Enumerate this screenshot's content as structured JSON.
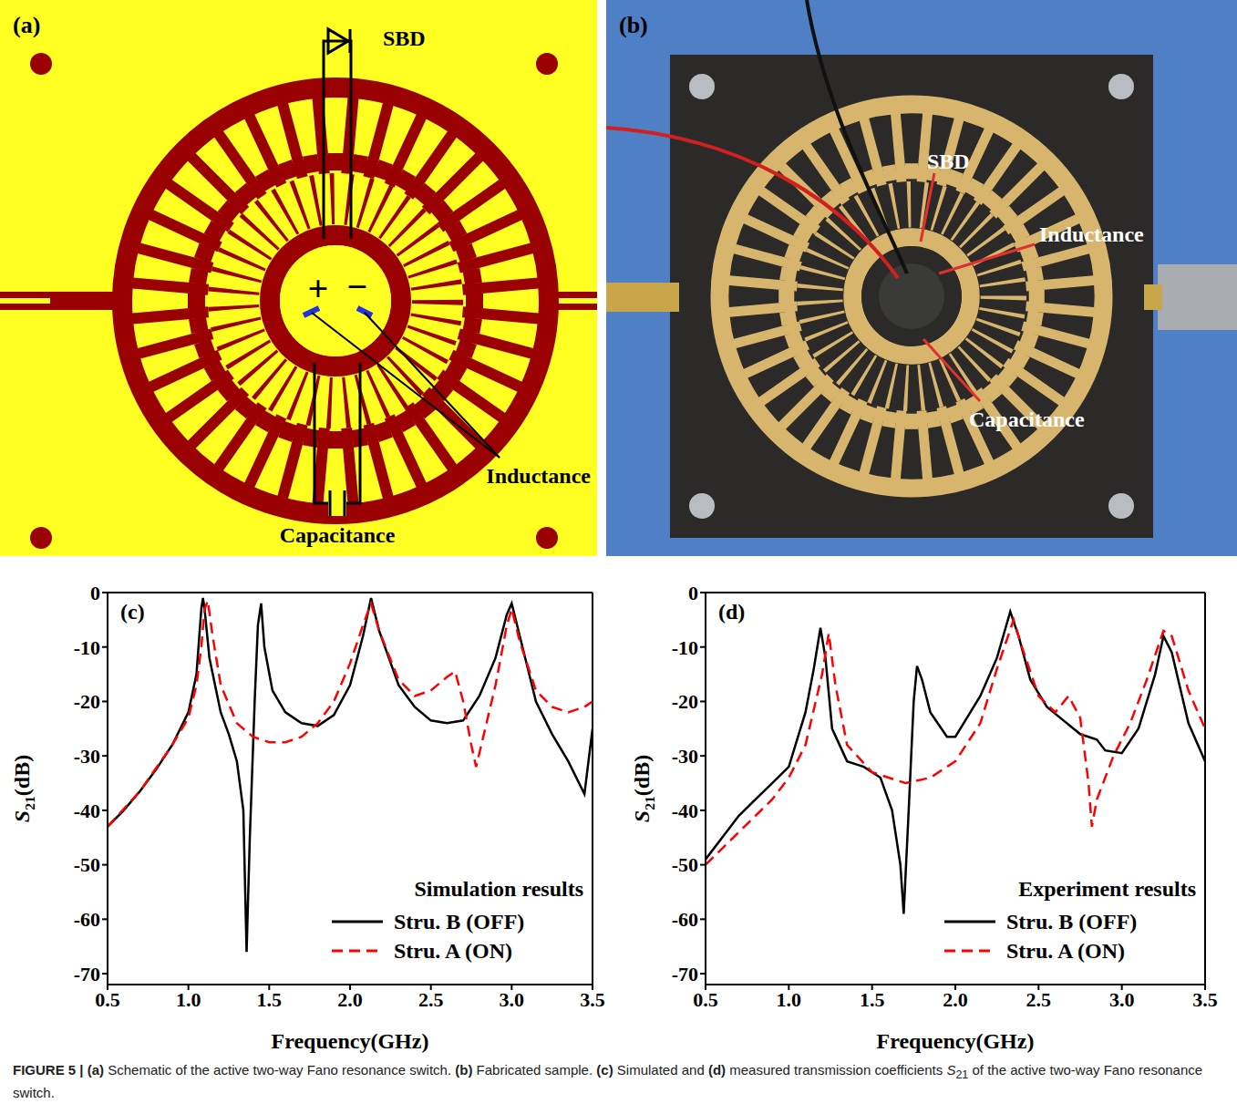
{
  "panel_a": {
    "label": "(a)",
    "components": [
      "SBD",
      "Inductance",
      "Capacitance"
    ],
    "polarity": [
      "+",
      "−"
    ]
  },
  "panel_b": {
    "label": "(b)",
    "components": [
      "SBD",
      "Inductance",
      "Capacitance"
    ]
  },
  "chart_data": [
    {
      "type": "line",
      "panel": "(c)",
      "legend_title": "Simulation results",
      "legend": "lower right",
      "x_label": "Frequency(GHz)",
      "y_label": "S21(dB)",
      "xlim": [
        0.5,
        3.5
      ],
      "ylim": [
        -72,
        0
      ],
      "xticks": [
        0.5,
        {
          "value": 1,
          "label": "1.0"
        },
        1.5,
        {
          "value": 2,
          "label": "2.0"
        },
        2.5,
        {
          "value": 3,
          "label": "3.0"
        },
        3.5
      ],
      "yticks": [
        0,
        -10,
        -20,
        -30,
        -40,
        -50,
        -60,
        -70
      ],
      "series": [
        {
          "name": "Stru. B (OFF)",
          "color": "#000000",
          "line_style": "solid",
          "x": [
            0.5,
            0.6,
            0.7,
            0.8,
            0.9,
            1.0,
            1.05,
            1.08,
            1.09,
            1.1,
            1.13,
            1.2,
            1.25,
            1.3,
            1.34,
            1.36,
            1.38,
            1.41,
            1.43,
            1.45,
            1.47,
            1.52,
            1.6,
            1.7,
            1.8,
            1.9,
            2.0,
            2.08,
            2.13,
            2.18,
            2.3,
            2.4,
            2.5,
            2.6,
            2.7,
            2.8,
            2.9,
            2.97,
            3.0,
            3.05,
            3.15,
            3.25,
            3.35,
            3.45,
            3.5
          ],
          "values": [
            -43,
            -40,
            -36.5,
            -32.5,
            -28,
            -22,
            -15,
            -3,
            -1,
            -3,
            -12,
            -22,
            -26,
            -31,
            -40,
            -66,
            -45,
            -20,
            -6,
            -2,
            -10,
            -18,
            -22,
            -24,
            -24.5,
            -22.5,
            -17,
            -8,
            -1,
            -7,
            -17,
            -21,
            -23.5,
            -24,
            -23.5,
            -19,
            -12,
            -4,
            -2,
            -8,
            -20,
            -26,
            -31,
            -37,
            -25
          ]
        },
        {
          "name": "Stru. A (ON)",
          "color": "#ff0000",
          "line_style": "dashed",
          "x": [
            0.5,
            0.7,
            0.9,
            1.0,
            1.05,
            1.08,
            1.1,
            1.12,
            1.15,
            1.2,
            1.3,
            1.4,
            1.5,
            1.6,
            1.7,
            1.8,
            1.9,
            2.0,
            2.08,
            2.13,
            2.18,
            2.3,
            2.4,
            2.5,
            2.6,
            2.65,
            2.7,
            2.75,
            2.78,
            2.82,
            2.9,
            2.97,
            3.0,
            3.05,
            3.15,
            3.25,
            3.35,
            3.45,
            3.5
          ],
          "values": [
            -43,
            -36.5,
            -28,
            -23,
            -17,
            -10,
            -3,
            -1.5,
            -8,
            -17,
            -24,
            -26.5,
            -27.5,
            -27.5,
            -26.5,
            -24,
            -20,
            -13,
            -6,
            -2,
            -7,
            -16,
            -19,
            -18,
            -15.5,
            -14.5,
            -20,
            -28,
            -32,
            -27,
            -17,
            -6,
            -3,
            -9,
            -18,
            -21,
            -22,
            -21,
            -20
          ]
        }
      ]
    },
    {
      "type": "line",
      "panel": "(d)",
      "legend_title": "Experiment results",
      "legend": "lower right",
      "x_label": "Frequency(GHz)",
      "y_label": "S21(dB)",
      "xlim": [
        0.5,
        3.5
      ],
      "ylim": [
        -72,
        0
      ],
      "xticks": [
        0.5,
        {
          "value": 1,
          "label": "1.0"
        },
        1.5,
        {
          "value": 2,
          "label": "2.0"
        },
        2.5,
        {
          "value": 3,
          "label": "3.0"
        },
        3.5
      ],
      "yticks": [
        0,
        -10,
        -20,
        -30,
        -40,
        -50,
        -60,
        -70
      ],
      "series": [
        {
          "name": "Stru. B (OFF)",
          "color": "#000000",
          "line_style": "solid",
          "x": [
            0.5,
            0.6,
            0.7,
            0.8,
            0.9,
            1.0,
            1.1,
            1.15,
            1.19,
            1.22,
            1.26,
            1.35,
            1.45,
            1.55,
            1.62,
            1.67,
            1.69,
            1.72,
            1.75,
            1.77,
            1.8,
            1.85,
            1.95,
            2.0,
            2.05,
            2.15,
            2.25,
            2.33,
            2.38,
            2.45,
            2.55,
            2.65,
            2.75,
            2.85,
            2.9,
            3.0,
            3.1,
            3.2,
            3.25,
            3.3,
            3.4,
            3.5
          ],
          "values": [
            -49,
            -45,
            -41,
            -38,
            -35,
            -32,
            -22,
            -14,
            -6.5,
            -12,
            -25,
            -31,
            -32,
            -34,
            -40,
            -50,
            -59,
            -40,
            -20,
            -13.5,
            -16,
            -22,
            -26.5,
            -26.5,
            -24,
            -19,
            -12,
            -3.5,
            -8,
            -16,
            -21,
            -23.5,
            -26,
            -27,
            -29,
            -29.5,
            -25,
            -15,
            -8,
            -11,
            -24,
            -31
          ]
        },
        {
          "name": "Stru. A (ON)",
          "color": "#ff0000",
          "line_style": "dashed",
          "x": [
            0.5,
            0.7,
            0.9,
            1.0,
            1.1,
            1.2,
            1.24,
            1.28,
            1.35,
            1.5,
            1.7,
            1.85,
            2.0,
            2.15,
            2.25,
            2.35,
            2.4,
            2.5,
            2.6,
            2.68,
            2.75,
            2.8,
            2.82,
            2.85,
            2.95,
            3.05,
            3.15,
            3.25,
            3.3,
            3.4,
            3.5
          ],
          "values": [
            -50,
            -44,
            -38,
            -34,
            -28,
            -15,
            -7.5,
            -17,
            -28,
            -33,
            -35,
            -34,
            -31,
            -24,
            -14,
            -5,
            -10,
            -19,
            -22,
            -19,
            -23,
            -35,
            -43,
            -38,
            -30,
            -24,
            -16,
            -7,
            -8,
            -18,
            -25
          ]
        }
      ]
    }
  ],
  "caption": {
    "label": "FIGURE 5 |",
    "text": "(a) Schematic of the active two-way Fano resonance switch. (b) Fabricated sample. (c) Simulated and (d) measured transmission coefficients S21 of the active two-way Fano resonance switch."
  }
}
